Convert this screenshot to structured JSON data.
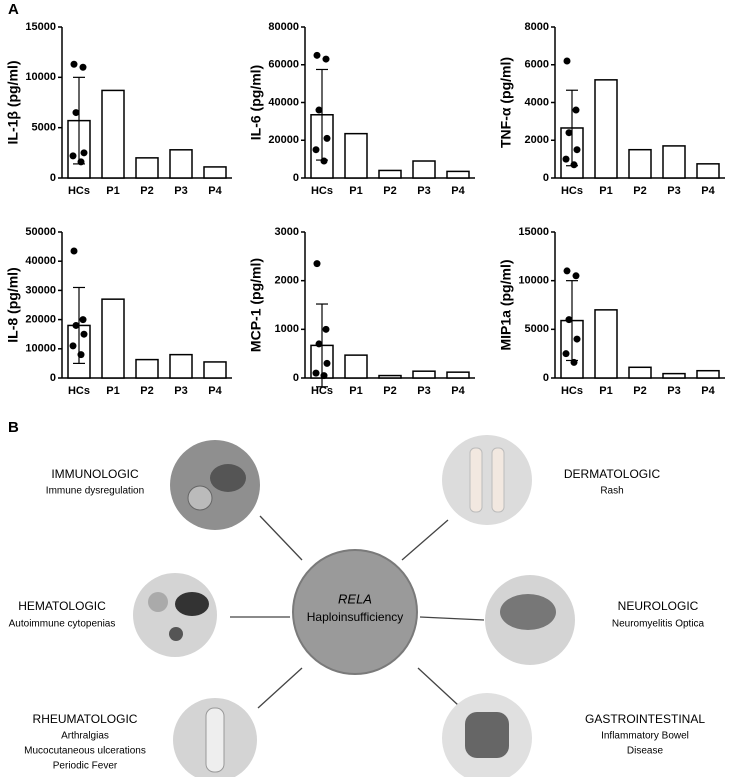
{
  "panel_labels": [
    "A",
    "B"
  ],
  "chart_data": [
    {
      "type": "bar",
      "y_label": "IL-1β (pg/ml)",
      "categories": [
        "HCs",
        "P1",
        "P2",
        "P3",
        "P4"
      ],
      "values": [
        5700,
        8700,
        2000,
        2800,
        1100
      ],
      "errors": [
        4300,
        null,
        null,
        null,
        null
      ],
      "points": [
        11300,
        11000,
        6500,
        2500,
        2200,
        1600
      ],
      "ylim": [
        0,
        15000
      ],
      "yticks": [
        0,
        5000,
        10000,
        15000
      ],
      "color": "#ffffff"
    },
    {
      "type": "bar",
      "y_label": "IL-6 (pg/ml)",
      "categories": [
        "HCs",
        "P1",
        "P2",
        "P3",
        "P4"
      ],
      "values": [
        33500,
        23500,
        4000,
        9000,
        3500
      ],
      "errors": [
        24000,
        null,
        null,
        null,
        null
      ],
      "points": [
        65000,
        63000,
        36000,
        21000,
        15000,
        9000
      ],
      "ylim": [
        0,
        80000
      ],
      "yticks": [
        0,
        20000,
        40000,
        60000,
        80000
      ],
      "color": "#ffffff"
    },
    {
      "type": "bar",
      "y_label": "TNF-α (pg/ml)",
      "categories": [
        "HCs",
        "P1",
        "P2",
        "P3",
        "P4"
      ],
      "values": [
        2650,
        5200,
        1500,
        1700,
        750
      ],
      "errors": [
        2000,
        null,
        null,
        null,
        null
      ],
      "points": [
        6200,
        3600,
        2400,
        1500,
        1000,
        700
      ],
      "ylim": [
        0,
        8000
      ],
      "yticks": [
        0,
        2000,
        4000,
        6000,
        8000
      ],
      "color": "#ffffff"
    },
    {
      "type": "bar",
      "y_label": "IL-8 (pg/ml)",
      "categories": [
        "HCs",
        "P1",
        "P2",
        "P3",
        "P4"
      ],
      "values": [
        18000,
        27000,
        6300,
        8000,
        5500
      ],
      "errors": [
        13000,
        null,
        null,
        null,
        null
      ],
      "points": [
        43500,
        20000,
        18000,
        15000,
        11000,
        8000
      ],
      "ylim": [
        0,
        50000
      ],
      "yticks": [
        0,
        10000,
        20000,
        30000,
        40000,
        50000
      ],
      "color": "#ffffff"
    },
    {
      "type": "bar",
      "y_label": "MCP-1 (pg/ml)",
      "categories": [
        "HCs",
        "P1",
        "P2",
        "P3",
        "P4"
      ],
      "values": [
        670,
        470,
        50,
        140,
        120
      ],
      "errors": [
        850,
        null,
        null,
        null,
        null
      ],
      "points": [
        2350,
        1000,
        700,
        300,
        100,
        50
      ],
      "ylim": [
        0,
        3000
      ],
      "yticks": [
        0,
        1000,
        2000,
        3000
      ],
      "color": "#ffffff"
    },
    {
      "type": "bar",
      "y_label": "MIP1a (pg/ml)",
      "categories": [
        "HCs",
        "P1",
        "P2",
        "P3",
        "P4"
      ],
      "values": [
        5900,
        7000,
        1100,
        450,
        750
      ],
      "errors": [
        4100,
        null,
        null,
        null,
        null
      ],
      "points": [
        11000,
        10500,
        6000,
        4000,
        2500,
        1600
      ],
      "ylim": [
        0,
        15000
      ],
      "yticks": [
        0,
        5000,
        10000,
        15000
      ],
      "color": "#ffffff"
    }
  ],
  "diagram": {
    "center": {
      "line1": "RELA",
      "line2": "Haploinsufficiency"
    },
    "nodes": [
      {
        "title": "IMMUNOLOGIC",
        "lines": [
          "Immune dysregulation"
        ]
      },
      {
        "title": "HEMATOLOGIC",
        "lines": [
          "Autoimmune cytopenias"
        ]
      },
      {
        "title": "RHEUMATOLOGIC",
        "lines": [
          "Arthralgias",
          "Mucocutaneous ulcerations",
          "Periodic Fever"
        ]
      },
      {
        "title": "DERMATOLOGIC",
        "lines": [
          "Rash"
        ]
      },
      {
        "title": "NEUROLOGIC",
        "lines": [
          "Neuromyelitis Optica"
        ]
      },
      {
        "title": "GASTROINTESTINAL",
        "lines": [
          "Inflammatory Bowel",
          "Disease"
        ]
      }
    ]
  }
}
